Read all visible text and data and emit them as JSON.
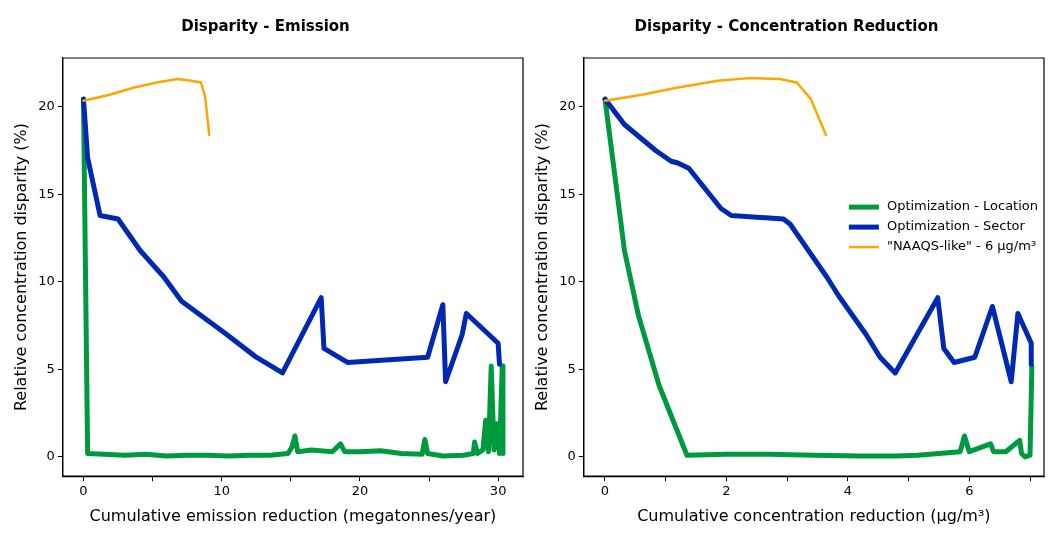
{
  "chart_data": [
    {
      "type": "line",
      "title": "Disparity - Emission",
      "xlabel": "Cumulative emission reduction (megatonnes/year)",
      "ylabel": "Relative concentration disparity (%)",
      "xlim": [
        -1.5,
        31.8
      ],
      "xticks": [
        0,
        {
          "value": 5,
          "label": null
        },
        10,
        {
          "value": 15,
          "label": null
        },
        20,
        {
          "value": 25,
          "label": null
        },
        30
      ],
      "ylim": [
        -1.1,
        22.8
      ],
      "yticks": [
        0,
        5,
        10,
        15,
        20
      ],
      "grid": false,
      "legend": false,
      "series": [
        {
          "color": "#009a3e",
          "x": [
            0,
            0.3,
            1.5,
            3,
            4.5,
            6,
            7.5,
            9,
            10.5,
            12,
            13.5,
            14.8,
            15.1,
            15.3,
            15.5,
            16.5,
            18,
            18.6,
            18.9,
            20,
            21.5,
            23,
            24.5,
            24.7,
            24.9,
            26,
            27.5,
            28.2,
            28.3,
            28.5,
            28.9,
            29.1,
            29.3,
            29.5,
            29.7,
            29.9,
            30.1,
            30.3,
            30.35
          ],
          "values": [
            20.45,
            0.2,
            0.15,
            0.1,
            0.15,
            0.05,
            0.1,
            0.1,
            0.05,
            0.1,
            0.1,
            0.2,
            0.6,
            1.2,
            0.3,
            0.4,
            0.3,
            0.75,
            0.3,
            0.3,
            0.35,
            0.2,
            0.15,
            1.0,
            0.2,
            0.05,
            0.1,
            0.2,
            0.85,
            0.2,
            0.4,
            2.1,
            0.3,
            5.2,
            0.4,
            1.9,
            0.2,
            5.2,
            0.2
          ]
        },
        {
          "color": "#0029b3",
          "x": [
            0,
            0.3,
            1.2,
            2.5,
            4.1,
            5.8,
            7.1,
            10.2,
            12.5,
            14.4,
            17.2,
            17.4,
            19.1,
            24.9,
            26.0,
            26.2,
            27.4,
            27.7,
            30.0,
            30.1
          ],
          "values": [
            20.45,
            17.1,
            13.8,
            13.6,
            11.8,
            10.3,
            8.9,
            7.1,
            5.7,
            4.8,
            9.1,
            6.2,
            5.4,
            5.7,
            8.7,
            4.3,
            7.0,
            8.2,
            6.5,
            5.3
          ]
        },
        {
          "color": "#ffa500",
          "x": [
            0,
            1.9,
            3.6,
            5.3,
            6.8,
            7.8,
            8.5,
            8.8,
            9.1
          ],
          "values": [
            20.36,
            20.7,
            21.1,
            21.4,
            21.6,
            21.5,
            21.4,
            20.6,
            18.4
          ]
        }
      ]
    },
    {
      "type": "line",
      "title": "Disparity - Concentration Reduction",
      "xlabel": "Cumulative concentration reduction (μg/m³)",
      "ylabel": "Relative concentration disparity (%)",
      "xlim": [
        -0.35,
        7.23
      ],
      "xticks": [
        0,
        {
          "value": 1,
          "label": null
        },
        2,
        {
          "value": 3,
          "label": null
        },
        4,
        {
          "value": 5,
          "label": null
        },
        6,
        {
          "value": 7,
          "label": null
        }
      ],
      "ylim": [
        -1.1,
        22.8
      ],
      "yticks": [
        0,
        5,
        10,
        15,
        20
      ],
      "grid": false,
      "legend": "right",
      "series": [
        {
          "name": "Optimization - Location",
          "color": "#009a3e",
          "x": [
            0,
            0.21,
            0.32,
            0.55,
            0.89,
            1.35,
            2.0,
            2.7,
            3.45,
            4.2,
            4.8,
            5.15,
            5.5,
            5.85,
            5.92,
            6.0,
            6.35,
            6.4,
            6.6,
            6.83,
            6.86,
            6.92,
            7.0,
            7.03
          ],
          "values": [
            20.45,
            14.8,
            11.8,
            8.1,
            4.1,
            0.1,
            0.15,
            0.15,
            0.1,
            0.05,
            0.05,
            0.1,
            0.2,
            0.3,
            1.2,
            0.3,
            0.75,
            0.3,
            0.3,
            0.95,
            0.2,
            0.0,
            0.1,
            5.2
          ]
        },
        {
          "name": "Optimization - Sector",
          "color": "#0029b3",
          "x": [
            0,
            0.32,
            0.84,
            1.09,
            1.2,
            1.38,
            1.91,
            2.08,
            2.94,
            3.05,
            3.65,
            3.85,
            4.3,
            4.53,
            4.78,
            5.48,
            5.58,
            5.75,
            6.09,
            6.38,
            6.69,
            6.8,
            7.02,
            7.02
          ],
          "values": [
            20.45,
            19.0,
            17.5,
            16.9,
            16.8,
            16.5,
            14.2,
            13.8,
            13.6,
            13.3,
            10.3,
            9.2,
            7.0,
            5.7,
            4.8,
            9.1,
            6.2,
            5.4,
            5.7,
            8.6,
            4.3,
            8.2,
            6.5,
            5.3
          ]
        },
        {
          "name": "\"NAAQS-like\" - 6 μg/m³",
          "color": "#ffa500",
          "x": [
            0,
            0.61,
            1.18,
            1.86,
            2.37,
            2.88,
            3.16,
            3.39,
            3.64
          ],
          "values": [
            20.36,
            20.7,
            21.1,
            21.5,
            21.65,
            21.6,
            21.4,
            20.45,
            18.4
          ]
        }
      ]
    }
  ]
}
